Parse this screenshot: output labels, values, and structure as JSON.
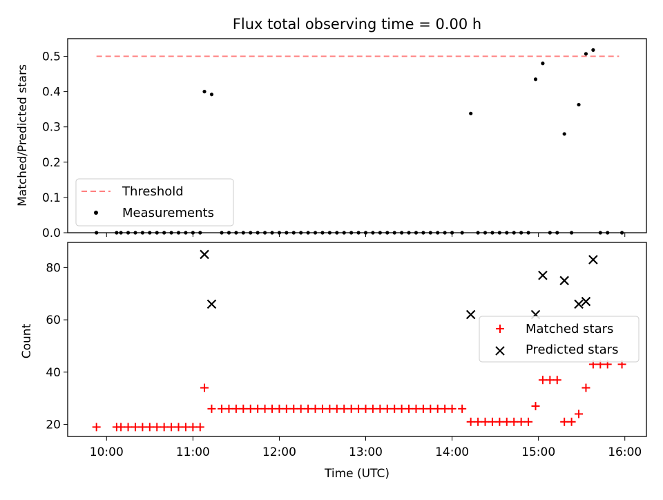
{
  "title": "Flux total observing time = 0.00 h",
  "chart_data": [
    {
      "type": "scatter",
      "title": "Flux total observing time = 0.00 h",
      "ylabel": "Matched/Predicted stars",
      "xlabel": "",
      "xlim": [
        "09:33",
        "16:15"
      ],
      "ylim": [
        0,
        0.55
      ],
      "yticks": [
        0.0,
        0.1,
        0.2,
        0.3,
        0.4,
        0.5
      ],
      "yticklabels": [
        "0.0",
        "0.1",
        "0.2",
        "0.3",
        "0.4",
        "0.5"
      ],
      "legend_position": "lower-left",
      "threshold": {
        "name": "Threshold",
        "value": 0.5,
        "x": [
          "09:53",
          "15:56"
        ],
        "color": "#ff7f7f"
      },
      "series": [
        {
          "name": "Measurements",
          "color": "#000000",
          "points": [
            [
              "09:53",
              0
            ],
            [
              "10:07",
              0
            ],
            [
              "10:10",
              0
            ],
            [
              "10:15",
              0
            ],
            [
              "10:20",
              0
            ],
            [
              "10:25",
              0
            ],
            [
              "10:30",
              0
            ],
            [
              "10:35",
              0
            ],
            [
              "10:40",
              0
            ],
            [
              "10:45",
              0
            ],
            [
              "10:50",
              0
            ],
            [
              "10:55",
              0
            ],
            [
              "11:00",
              0
            ],
            [
              "11:05",
              0
            ],
            [
              "11:08",
              0.4
            ],
            [
              "11:13",
              0.392
            ],
            [
              "11:20",
              0
            ],
            [
              "11:25",
              0
            ],
            [
              "11:30",
              0
            ],
            [
              "11:35",
              0
            ],
            [
              "11:40",
              0
            ],
            [
              "11:45",
              0
            ],
            [
              "11:50",
              0
            ],
            [
              "11:55",
              0
            ],
            [
              "12:00",
              0
            ],
            [
              "12:05",
              0
            ],
            [
              "12:10",
              0
            ],
            [
              "12:15",
              0
            ],
            [
              "12:20",
              0
            ],
            [
              "12:25",
              0
            ],
            [
              "12:30",
              0
            ],
            [
              "12:35",
              0
            ],
            [
              "12:40",
              0
            ],
            [
              "12:45",
              0
            ],
            [
              "12:50",
              0
            ],
            [
              "12:55",
              0
            ],
            [
              "13:00",
              0
            ],
            [
              "13:05",
              0
            ],
            [
              "13:10",
              0
            ],
            [
              "13:15",
              0
            ],
            [
              "13:20",
              0
            ],
            [
              "13:25",
              0
            ],
            [
              "13:30",
              0
            ],
            [
              "13:35",
              0
            ],
            [
              "13:40",
              0
            ],
            [
              "13:45",
              0
            ],
            [
              "13:50",
              0
            ],
            [
              "13:55",
              0
            ],
            [
              "14:00",
              0
            ],
            [
              "14:07",
              0
            ],
            [
              "14:13",
              0.338
            ],
            [
              "14:18",
              0
            ],
            [
              "14:23",
              0
            ],
            [
              "14:28",
              0
            ],
            [
              "14:33",
              0
            ],
            [
              "14:38",
              0
            ],
            [
              "14:43",
              0
            ],
            [
              "14:48",
              0
            ],
            [
              "14:53",
              0
            ],
            [
              "14:58",
              0.435
            ],
            [
              "15:03",
              0.48
            ],
            [
              "15:08",
              0
            ],
            [
              "15:13",
              0
            ],
            [
              "15:18",
              0.28
            ],
            [
              "15:23",
              0
            ],
            [
              "15:28",
              0.363
            ],
            [
              "15:33",
              0.507
            ],
            [
              "15:38",
              0.518
            ],
            [
              "15:43",
              0
            ],
            [
              "15:48",
              0
            ],
            [
              "15:58",
              0
            ]
          ]
        }
      ]
    },
    {
      "type": "scatter",
      "xlabel": "Time (UTC)",
      "ylabel": "Count",
      "xlim": [
        "09:33",
        "16:15"
      ],
      "ylim": [
        15.4,
        89.6
      ],
      "xticks": [
        "10:00",
        "11:00",
        "12:00",
        "13:00",
        "14:00",
        "15:00",
        "16:00"
      ],
      "yticks": [
        20,
        40,
        60,
        80
      ],
      "legend_position": "center-right",
      "series": [
        {
          "name": "Matched stars",
          "marker": "+",
          "color": "#ff0000",
          "points": [
            [
              "09:53",
              19
            ],
            [
              "10:07",
              19
            ],
            [
              "10:10",
              19
            ],
            [
              "10:15",
              19
            ],
            [
              "10:20",
              19
            ],
            [
              "10:25",
              19
            ],
            [
              "10:30",
              19
            ],
            [
              "10:35",
              19
            ],
            [
              "10:40",
              19
            ],
            [
              "10:45",
              19
            ],
            [
              "10:50",
              19
            ],
            [
              "10:55",
              19
            ],
            [
              "11:00",
              19
            ],
            [
              "11:05",
              19
            ],
            [
              "11:08",
              34
            ],
            [
              "11:13",
              26
            ],
            [
              "11:20",
              26
            ],
            [
              "11:25",
              26
            ],
            [
              "11:30",
              26
            ],
            [
              "11:35",
              26
            ],
            [
              "11:40",
              26
            ],
            [
              "11:45",
              26
            ],
            [
              "11:50",
              26
            ],
            [
              "11:55",
              26
            ],
            [
              "12:00",
              26
            ],
            [
              "12:05",
              26
            ],
            [
              "12:10",
              26
            ],
            [
              "12:15",
              26
            ],
            [
              "12:20",
              26
            ],
            [
              "12:25",
              26
            ],
            [
              "12:30",
              26
            ],
            [
              "12:35",
              26
            ],
            [
              "12:40",
              26
            ],
            [
              "12:45",
              26
            ],
            [
              "12:50",
              26
            ],
            [
              "12:55",
              26
            ],
            [
              "13:00",
              26
            ],
            [
              "13:05",
              26
            ],
            [
              "13:10",
              26
            ],
            [
              "13:15",
              26
            ],
            [
              "13:20",
              26
            ],
            [
              "13:25",
              26
            ],
            [
              "13:30",
              26
            ],
            [
              "13:35",
              26
            ],
            [
              "13:40",
              26
            ],
            [
              "13:45",
              26
            ],
            [
              "13:50",
              26
            ],
            [
              "13:55",
              26
            ],
            [
              "14:00",
              26
            ],
            [
              "14:07",
              26
            ],
            [
              "14:13",
              21
            ],
            [
              "14:18",
              21
            ],
            [
              "14:23",
              21
            ],
            [
              "14:28",
              21
            ],
            [
              "14:33",
              21
            ],
            [
              "14:38",
              21
            ],
            [
              "14:43",
              21
            ],
            [
              "14:48",
              21
            ],
            [
              "14:53",
              21
            ],
            [
              "14:58",
              27
            ],
            [
              "15:03",
              37
            ],
            [
              "15:08",
              37
            ],
            [
              "15:13",
              37
            ],
            [
              "15:18",
              21
            ],
            [
              "15:23",
              21
            ],
            [
              "15:28",
              24
            ],
            [
              "15:33",
              34
            ],
            [
              "15:38",
              43
            ],
            [
              "15:43",
              43
            ],
            [
              "15:48",
              43
            ],
            [
              "15:58",
              43
            ]
          ]
        },
        {
          "name": "Predicted stars",
          "marker": "x",
          "color": "#000000",
          "points": [
            [
              "11:08",
              85
            ],
            [
              "11:13",
              66
            ],
            [
              "14:13",
              62
            ],
            [
              "14:58",
              62
            ],
            [
              "15:03",
              77
            ],
            [
              "15:18",
              75
            ],
            [
              "15:28",
              66
            ],
            [
              "15:33",
              67
            ],
            [
              "15:38",
              83
            ]
          ]
        }
      ]
    }
  ]
}
